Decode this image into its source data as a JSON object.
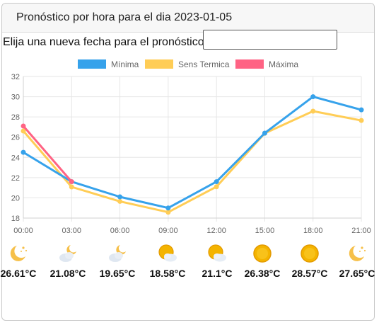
{
  "header": {
    "title": "Pronóstico por hora para el dia 2023-01-05"
  },
  "date_picker": {
    "label": "Elija una nueva fecha para el pronóstico",
    "value": ""
  },
  "chart_data": {
    "type": "line",
    "x": [
      "00:00",
      "03:00",
      "06:00",
      "09:00",
      "12:00",
      "15:00",
      "18:00",
      "21:00"
    ],
    "ylim": [
      18,
      32
    ],
    "yticks": [
      18,
      20,
      22,
      24,
      26,
      28,
      30,
      32
    ],
    "grid": true,
    "legend_position": "top",
    "series": [
      {
        "name": "Mínima",
        "color": "#36a2eb",
        "values": [
          24.5,
          21.6,
          20.1,
          19.0,
          21.6,
          26.4,
          30.0,
          28.7
        ]
      },
      {
        "name": "Sens Termica",
        "color": "#ffcd56",
        "values": [
          26.61,
          21.08,
          19.65,
          18.58,
          21.1,
          26.38,
          28.57,
          27.65
        ]
      },
      {
        "name": "Máxima",
        "color": "#ff6384",
        "values": [
          27.1,
          21.6,
          null,
          null,
          null,
          null,
          null,
          null
        ]
      }
    ]
  },
  "forecast": [
    {
      "icon": "moon-stars-icon",
      "temp": "26.61°C"
    },
    {
      "icon": "cloud-moon-icon",
      "temp": "21.08°C"
    },
    {
      "icon": "cloud-moon-icon",
      "temp": "19.65°C"
    },
    {
      "icon": "sun-cloud-icon",
      "temp": "18.58°C"
    },
    {
      "icon": "sun-cloud-icon",
      "temp": "21.1°C"
    },
    {
      "icon": "sun-icon",
      "temp": "26.38°C"
    },
    {
      "icon": "sun-icon",
      "temp": "28.57°C"
    },
    {
      "icon": "moon-stars-icon",
      "temp": "27.65°C"
    }
  ]
}
